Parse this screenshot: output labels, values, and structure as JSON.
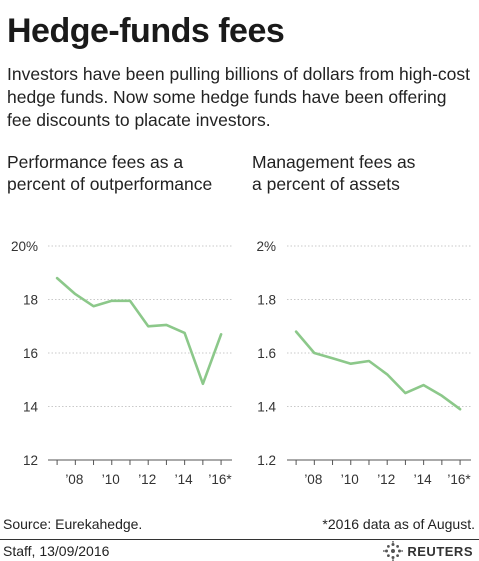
{
  "title": "Hedge-funds fees",
  "subtitle_lines": [
    "Investors have been pulling billions of dollars from high-cost",
    "hedge funds. Now some hedge funds have been offering",
    "fee discounts to placate investors."
  ],
  "source": "Source: Eurekahedge.",
  "footnote": "*2016 data as of August.",
  "credit": "Staff,  13/09/2016",
  "logo_text": "REUTERS",
  "colors": {
    "line": "#8cc88a",
    "grid": "#c9c9c9",
    "axis": "#555555"
  },
  "chart_data": [
    {
      "type": "line",
      "title_lines": [
        "Performance fees as a",
        "percent of outperformance"
      ],
      "x": [
        2007,
        2008,
        2009,
        2010,
        2011,
        2012,
        2013,
        2014,
        2015,
        2016
      ],
      "xlim": [
        2006.5,
        2016.6
      ],
      "x_ticks": [
        2008,
        2010,
        2012,
        2014,
        2016
      ],
      "x_tick_labels": [
        "’08",
        "’10",
        "’12",
        "’14",
        "’16*"
      ],
      "series": [
        {
          "values": [
            18.8,
            18.2,
            17.75,
            17.95,
            17.95,
            17.0,
            17.05,
            16.75,
            14.85,
            16.7
          ]
        }
      ],
      "ylim": [
        12,
        20
      ],
      "y_ticks": [
        12,
        14,
        16,
        18,
        20
      ],
      "y_tick_labels": [
        "12",
        "14",
        "16",
        "18",
        "20%"
      ],
      "grid": true
    },
    {
      "type": "line",
      "title_lines": [
        "Management fees as",
        "a percent of assets"
      ],
      "x": [
        2007,
        2008,
        2009,
        2010,
        2011,
        2012,
        2013,
        2014,
        2015,
        2016
      ],
      "xlim": [
        2006.5,
        2016.6
      ],
      "x_ticks": [
        2008,
        2010,
        2012,
        2014,
        2016
      ],
      "x_tick_labels": [
        "’08",
        "’10",
        "’12",
        "’14",
        "’16*"
      ],
      "series": [
        {
          "values": [
            1.68,
            1.6,
            1.58,
            1.56,
            1.57,
            1.52,
            1.45,
            1.48,
            1.44,
            1.39
          ]
        }
      ],
      "ylim": [
        1.2,
        2.0
      ],
      "y_ticks": [
        1.2,
        1.4,
        1.6,
        1.8,
        2.0
      ],
      "y_tick_labels": [
        "1.2",
        "1.4",
        "1.6",
        "1.8",
        "2%"
      ],
      "grid": true
    }
  ]
}
